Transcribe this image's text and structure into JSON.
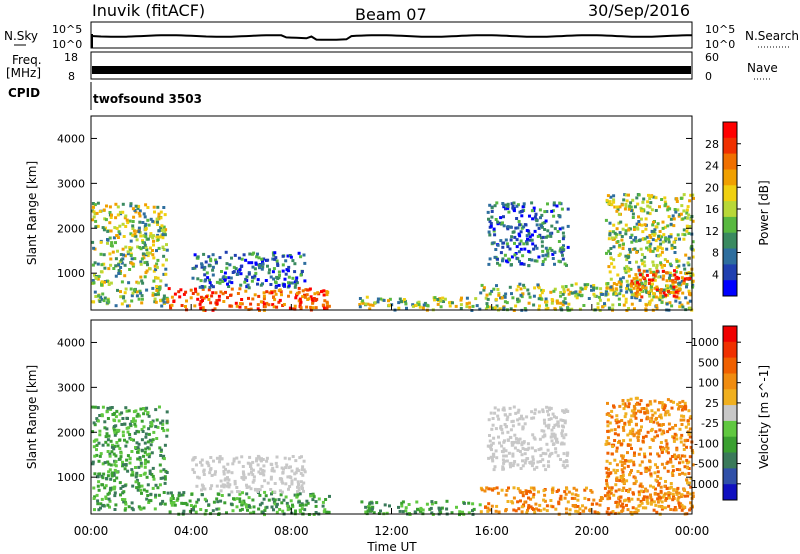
{
  "header": {
    "station": "Inuvik (fitACF)",
    "beam": "Beam 07",
    "date": "30/Sep/2016"
  },
  "panels": {
    "nsky": {
      "label": "N.Sky",
      "tick_top": "10^5",
      "tick_bottom": "10^0",
      "right_label": "N.Search",
      "right_tick_top": "10^5",
      "right_tick_bottom": "10^0"
    },
    "freq": {
      "label": "Freq.",
      "unit": "[MHz]",
      "tick_top": "18",
      "tick_bottom": "8",
      "right_label": "Nave",
      "right_tick_top": "60",
      "right_tick_bottom": "0"
    },
    "cpid": {
      "label": "CPID",
      "value": "twofsound 3503"
    }
  },
  "chart_data": [
    {
      "type": "heatmap",
      "panel": "power",
      "ylabel": "Slant Range [km]",
      "ylim": [
        180,
        4500
      ],
      "yticks": [
        "1000",
        "2000",
        "3000",
        "4000"
      ],
      "xlim": [
        "00:00",
        "24:00"
      ],
      "colorbar": {
        "label": "Power [dB]",
        "ticks": [
          "4",
          "8",
          "12",
          "16",
          "20",
          "24",
          "28"
        ],
        "colors": [
          "#0000ff",
          "#2040b0",
          "#2e6e9e",
          "#3a8a60",
          "#58b840",
          "#b8d838",
          "#f0d010",
          "#f0a000",
          "#f07000",
          "#f03000",
          "#ff0000"
        ]
      },
      "scatter_bands": [
        {
          "t0": 0.0,
          "t1": 3.0,
          "r0": 300,
          "r1": 2600,
          "level": "mid"
        },
        {
          "t0": 3.0,
          "t1": 9.5,
          "r0": 200,
          "r1": 700,
          "level": "high"
        },
        {
          "t0": 4.0,
          "t1": 8.5,
          "r0": 700,
          "r1": 1500,
          "level": "low"
        },
        {
          "t0": 10.5,
          "t1": 15.5,
          "r0": 200,
          "r1": 500,
          "level": "mid"
        },
        {
          "t0": 15.5,
          "t1": 24.0,
          "r0": 200,
          "r1": 800,
          "level": "mid"
        },
        {
          "t0": 15.8,
          "t1": 19.0,
          "r0": 1200,
          "r1": 2600,
          "level": "low"
        },
        {
          "t0": 20.5,
          "t1": 24.0,
          "r0": 500,
          "r1": 2800,
          "level": "mid"
        },
        {
          "t0": 21.5,
          "t1": 24.0,
          "r0": 500,
          "r1": 1100,
          "level": "high"
        }
      ]
    },
    {
      "type": "heatmap",
      "panel": "velocity",
      "ylabel": "Slant Range [km]",
      "ylim": [
        180,
        4500
      ],
      "yticks": [
        "1000",
        "2000",
        "3000",
        "4000"
      ],
      "xlabel": "Time UT",
      "xticks": [
        "00:00",
        "04:00",
        "08:00",
        "12:00",
        "16:00",
        "20:00",
        "00:00"
      ],
      "colorbar": {
        "label": "Velocity [m s^-1]",
        "ticks": [
          "1000",
          "500",
          "100",
          "25",
          "-25",
          "-100",
          "-500",
          "-1000"
        ],
        "colors": [
          "#1010c0",
          "#3050a8",
          "#3a7a5a",
          "#3aa030",
          "#60c840",
          "#c8c8c8",
          "#f0b020",
          "#f08c10",
          "#f06000",
          "#f03000",
          "#f00000"
        ]
      },
      "scatter_bands": [
        {
          "t0": 0.0,
          "t1": 3.0,
          "r0": 300,
          "r1": 2600,
          "level": "pos"
        },
        {
          "t0": 3.0,
          "t1": 9.5,
          "r0": 200,
          "r1": 700,
          "level": "pos"
        },
        {
          "t0": 4.0,
          "t1": 8.5,
          "r0": 700,
          "r1": 1500,
          "level": "zero"
        },
        {
          "t0": 10.5,
          "t1": 15.5,
          "r0": 200,
          "r1": 500,
          "level": "pos"
        },
        {
          "t0": 15.5,
          "t1": 24.0,
          "r0": 200,
          "r1": 800,
          "level": "neg"
        },
        {
          "t0": 15.8,
          "t1": 19.0,
          "r0": 1200,
          "r1": 2600,
          "level": "zero"
        },
        {
          "t0": 20.5,
          "t1": 24.0,
          "r0": 500,
          "r1": 2800,
          "level": "neg"
        }
      ]
    }
  ]
}
